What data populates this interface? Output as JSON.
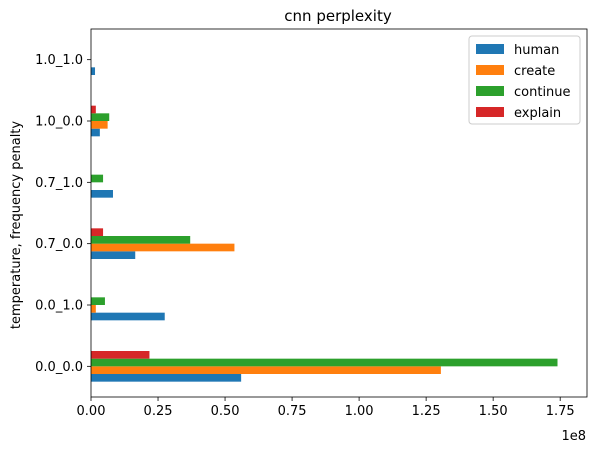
{
  "chart_data": {
    "type": "bar",
    "orientation": "horizontal",
    "title": "cnn perplexity",
    "ylabel": "temperature, frequency penalty",
    "xlabel": "",
    "x_scale_label": "1e8",
    "xlim": [
      0,
      1.85
    ],
    "x_ticks": [
      "0.00",
      "0.25",
      "0.50",
      "0.75",
      "1.00",
      "1.25",
      "1.50",
      "1.75"
    ],
    "x_tick_values": [
      0,
      0.25,
      0.5,
      0.75,
      1.0,
      1.25,
      1.5,
      1.75
    ],
    "categories": [
      "0.0_0.0",
      "0.0_1.0",
      "0.7_0.0",
      "0.7_1.0",
      "1.0_0.0",
      "1.0_1.0"
    ],
    "series": [
      {
        "name": "human",
        "color": "#1f77b4",
        "values": [
          0.56,
          0.275,
          0.165,
          0.082,
          0.033,
          0.015
        ]
      },
      {
        "name": "create",
        "color": "#ff7f0e",
        "values": [
          1.305,
          0.018,
          0.535,
          0,
          0.062,
          0
        ]
      },
      {
        "name": "continue",
        "color": "#2ca02c",
        "values": [
          1.74,
          0.052,
          0.37,
          0.045,
          0.068,
          0
        ]
      },
      {
        "name": "explain",
        "color": "#d62728",
        "values": [
          0.218,
          0,
          0.045,
          0,
          0.018,
          0
        ]
      }
    ],
    "legend": "top-right",
    "grid": false
  }
}
